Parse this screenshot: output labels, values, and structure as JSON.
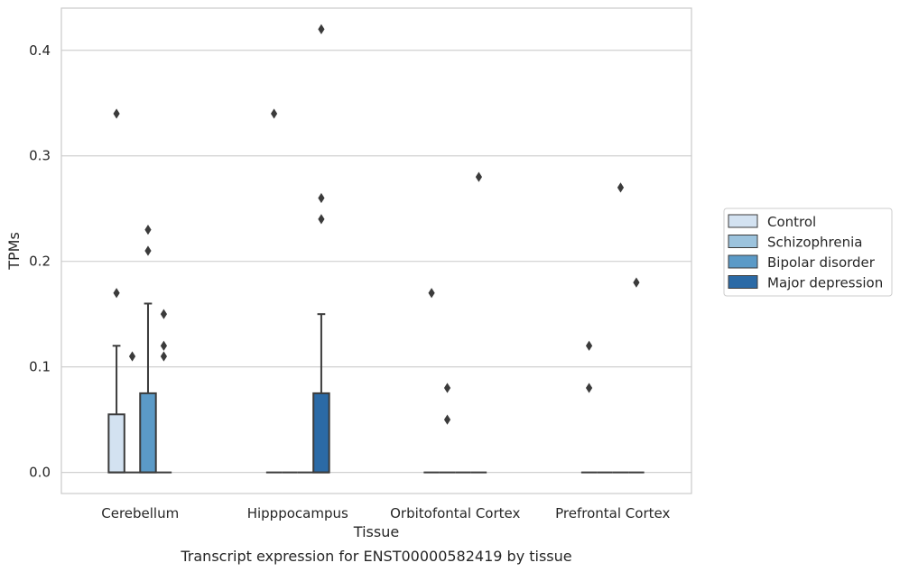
{
  "chart_data": {
    "type": "box",
    "xlabel": "Tissue",
    "ylabel": "TPMs",
    "caption": "Transcript expression for ENST00000582419 by tissue",
    "ylim": [
      -0.02,
      0.44
    ],
    "yticks": [
      0.0,
      0.1,
      0.2,
      0.3,
      0.4
    ],
    "ytick_labels": [
      "0.0",
      "0.1",
      "0.2",
      "0.3",
      "0.4"
    ],
    "grid": "horizontal",
    "legend_position": "right",
    "categories": [
      "Cerebellum",
      "Hipppocampus",
      "Orbitofontal Cortex",
      "Prefrontal Cortex"
    ],
    "series": [
      {
        "name": "Control",
        "color": "#d3e2f1",
        "boxes": [
          {
            "q1": 0.0,
            "median": 0.0,
            "q3": 0.055,
            "whislo": 0.0,
            "whishi": 0.12,
            "fliers": [
              0.17,
              0.34
            ]
          },
          {
            "q1": 0.0,
            "median": 0.0,
            "q3": 0.0,
            "whislo": 0.0,
            "whishi": 0.0,
            "fliers": [
              0.34
            ]
          },
          {
            "q1": 0.0,
            "median": 0.0,
            "q3": 0.0,
            "whislo": 0.0,
            "whishi": 0.0,
            "fliers": [
              0.17
            ]
          },
          {
            "q1": 0.0,
            "median": 0.0,
            "q3": 0.0,
            "whislo": 0.0,
            "whishi": 0.0,
            "fliers": [
              0.08,
              0.12
            ]
          }
        ]
      },
      {
        "name": "Schizophrenia",
        "color": "#9cc3dd",
        "boxes": [
          {
            "q1": 0.0,
            "median": 0.0,
            "q3": 0.0,
            "whislo": 0.0,
            "whishi": 0.0,
            "fliers": [
              0.11
            ]
          },
          {
            "q1": 0.0,
            "median": 0.0,
            "q3": 0.0,
            "whislo": 0.0,
            "whishi": 0.0,
            "fliers": []
          },
          {
            "q1": 0.0,
            "median": 0.0,
            "q3": 0.0,
            "whislo": 0.0,
            "whishi": 0.0,
            "fliers": [
              0.05,
              0.08
            ]
          },
          {
            "q1": 0.0,
            "median": 0.0,
            "q3": 0.0,
            "whislo": 0.0,
            "whishi": 0.0,
            "fliers": []
          }
        ]
      },
      {
        "name": "Bipolar disorder",
        "color": "#5b9ac7",
        "boxes": [
          {
            "q1": 0.0,
            "median": 0.0,
            "q3": 0.075,
            "whislo": 0.0,
            "whishi": 0.16,
            "fliers": [
              0.21,
              0.23
            ]
          },
          {
            "q1": 0.0,
            "median": 0.0,
            "q3": 0.0,
            "whislo": 0.0,
            "whishi": 0.0,
            "fliers": []
          },
          {
            "q1": 0.0,
            "median": 0.0,
            "q3": 0.0,
            "whislo": 0.0,
            "whishi": 0.0,
            "fliers": []
          },
          {
            "q1": 0.0,
            "median": 0.0,
            "q3": 0.0,
            "whislo": 0.0,
            "whishi": 0.0,
            "fliers": [
              0.27
            ]
          }
        ]
      },
      {
        "name": "Major depression",
        "color": "#2b6aa6",
        "boxes": [
          {
            "q1": 0.0,
            "median": 0.0,
            "q3": 0.0,
            "whislo": 0.0,
            "whishi": 0.0,
            "fliers": [
              0.11,
              0.12,
              0.15
            ]
          },
          {
            "q1": 0.0,
            "median": 0.0,
            "q3": 0.075,
            "whislo": 0.0,
            "whishi": 0.15,
            "fliers": [
              0.24,
              0.26,
              0.42
            ]
          },
          {
            "q1": 0.0,
            "median": 0.0,
            "q3": 0.0,
            "whislo": 0.0,
            "whishi": 0.0,
            "fliers": [
              0.28
            ]
          },
          {
            "q1": 0.0,
            "median": 0.0,
            "q3": 0.0,
            "whislo": 0.0,
            "whishi": 0.0,
            "fliers": [
              0.18
            ]
          }
        ]
      }
    ]
  }
}
